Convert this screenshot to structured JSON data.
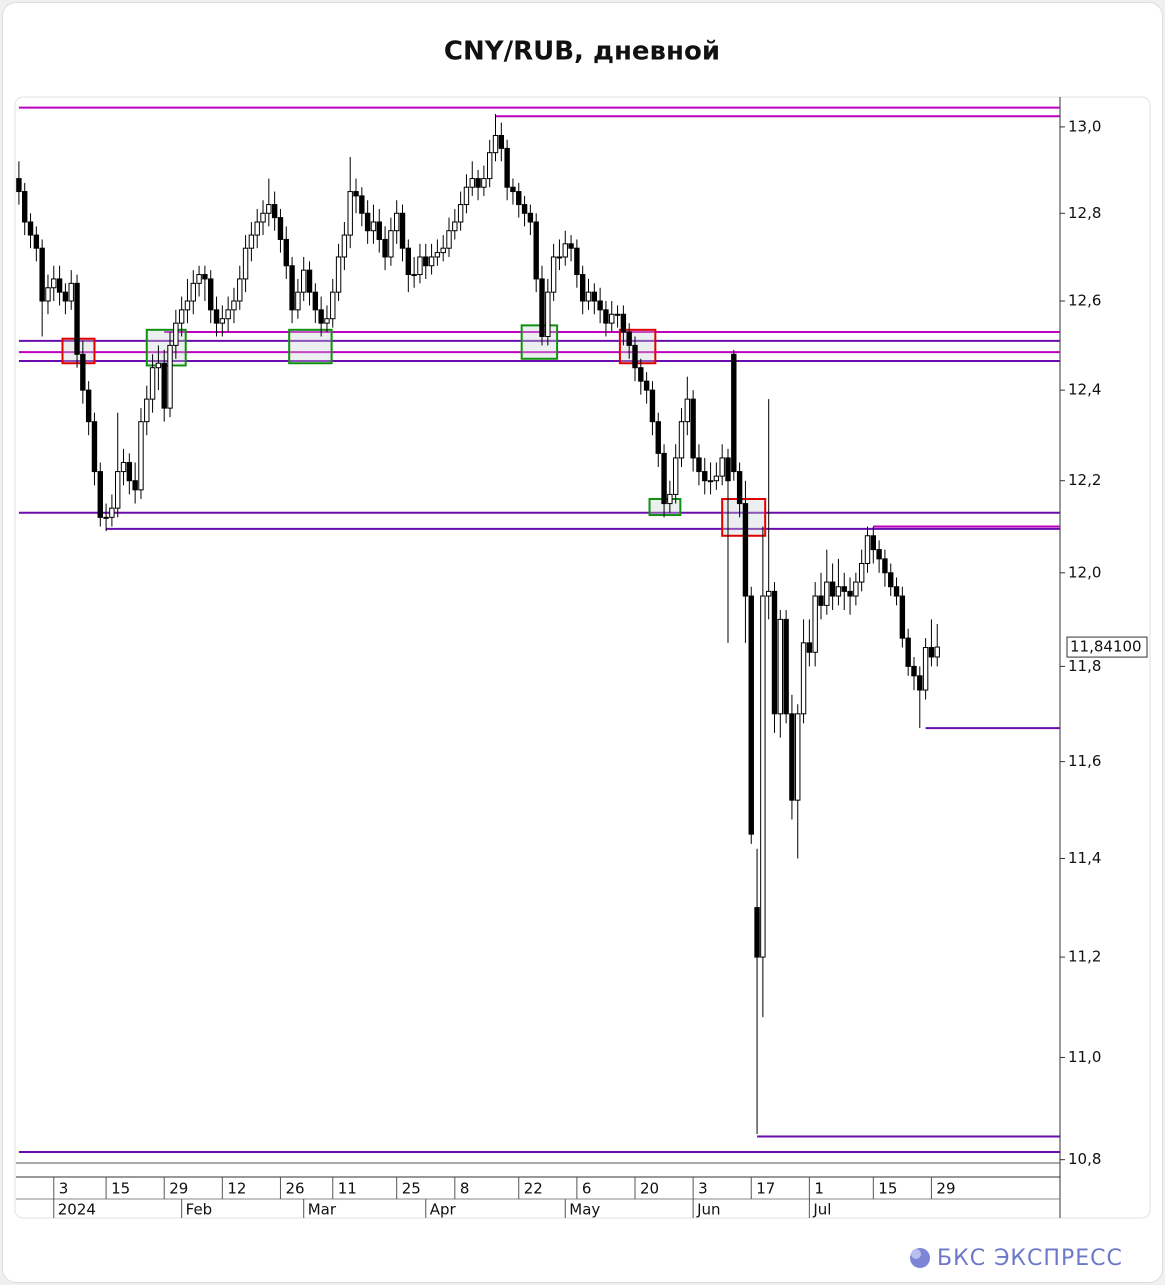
{
  "chart_data": {
    "type": "candlestick",
    "title": "CNY/RUB, дневной",
    "log_scale": true,
    "ylim": [
      10.78,
      13.07
    ],
    "xlim": [
      -0.5,
      170.5
    ],
    "yticks": [
      {
        "value": 10.8,
        "label": "10,8"
      },
      {
        "value": 11.0,
        "label": "11,0"
      },
      {
        "value": 11.2,
        "label": "11,2"
      },
      {
        "value": 11.4,
        "label": "11,4"
      },
      {
        "value": 11.6,
        "label": "11,6"
      },
      {
        "value": 11.8,
        "label": "11,8"
      },
      {
        "value": 12.0,
        "label": "12,0"
      },
      {
        "value": 12.2,
        "label": "12,2"
      },
      {
        "value": 12.4,
        "label": "12,4"
      },
      {
        "value": 12.6,
        "label": "12,6"
      },
      {
        "value": 12.8,
        "label": "12,8"
      },
      {
        "value": 13.0,
        "label": "13,0"
      }
    ],
    "xticks": [
      {
        "value": 6,
        "label": "3"
      },
      {
        "value": 15,
        "label": "15"
      },
      {
        "value": 25,
        "label": "29"
      },
      {
        "value": 35,
        "label": "12"
      },
      {
        "value": 45,
        "label": "26"
      },
      {
        "value": 54,
        "label": "11"
      },
      {
        "value": 65,
        "label": "25"
      },
      {
        "value": 75,
        "label": "8"
      },
      {
        "value": 86,
        "label": "22"
      },
      {
        "value": 96,
        "label": "6"
      },
      {
        "value": 106,
        "label": "20"
      },
      {
        "value": 116,
        "label": "3"
      },
      {
        "value": 126,
        "label": "17"
      },
      {
        "value": 136,
        "label": "1"
      },
      {
        "value": 147,
        "label": "15"
      },
      {
        "value": 157,
        "label": "29"
      }
    ],
    "month_ticks": [
      {
        "value": 6,
        "label": "2024"
      },
      {
        "value": 28,
        "label": "Feb"
      },
      {
        "value": 49,
        "label": "Mar"
      },
      {
        "value": 70,
        "label": "Apr"
      },
      {
        "value": 94,
        "label": "May"
      },
      {
        "value": 116,
        "label": "Jun"
      },
      {
        "value": 136,
        "label": "Jul"
      }
    ],
    "up_color": "#ffffff",
    "down_color": "#000000",
    "candles": [
      [
        12.88,
        12.92,
        12.82,
        12.85
      ],
      [
        12.85,
        12.87,
        12.75,
        12.78
      ],
      [
        12.78,
        12.8,
        12.72,
        12.75
      ],
      [
        12.75,
        12.77,
        12.69,
        12.72
      ],
      [
        12.72,
        12.74,
        12.52,
        12.6
      ],
      [
        12.6,
        12.66,
        12.57,
        12.63
      ],
      [
        12.63,
        12.68,
        12.6,
        12.65
      ],
      [
        12.65,
        12.68,
        12.59,
        12.62
      ],
      [
        12.62,
        12.64,
        12.57,
        12.6
      ],
      [
        12.6,
        12.67,
        12.58,
        12.64
      ],
      [
        12.64,
        12.66,
        12.45,
        12.48
      ],
      [
        12.48,
        12.51,
        12.37,
        12.4
      ],
      [
        12.4,
        12.42,
        12.3,
        12.33
      ],
      [
        12.33,
        12.35,
        12.19,
        12.22
      ],
      [
        12.22,
        12.24,
        12.1,
        12.12
      ],
      [
        12.12,
        12.15,
        12.09,
        12.12
      ],
      [
        12.12,
        12.17,
        12.1,
        12.14
      ],
      [
        12.14,
        12.35,
        12.12,
        12.22
      ],
      [
        12.22,
        12.27,
        12.19,
        12.24
      ],
      [
        12.24,
        12.26,
        12.17,
        12.2
      ],
      [
        12.2,
        12.24,
        12.15,
        12.18
      ],
      [
        12.18,
        12.36,
        12.16,
        12.33
      ],
      [
        12.33,
        12.41,
        12.3,
        12.38
      ],
      [
        12.38,
        12.48,
        12.35,
        12.45
      ],
      [
        12.45,
        12.5,
        12.4,
        12.46
      ],
      [
        12.46,
        12.49,
        12.33,
        12.36
      ],
      [
        12.36,
        12.53,
        12.34,
        12.5
      ],
      [
        12.5,
        12.58,
        12.47,
        12.55
      ],
      [
        12.55,
        12.61,
        12.52,
        12.58
      ],
      [
        12.58,
        12.65,
        12.55,
        12.6
      ],
      [
        12.6,
        12.67,
        12.57,
        12.64
      ],
      [
        12.64,
        12.68,
        12.61,
        12.66
      ],
      [
        12.66,
        12.68,
        12.6,
        12.65
      ],
      [
        12.65,
        12.67,
        12.55,
        12.58
      ],
      [
        12.58,
        12.61,
        12.52,
        12.55
      ],
      [
        12.55,
        12.59,
        12.52,
        12.56
      ],
      [
        12.56,
        12.61,
        12.53,
        12.58
      ],
      [
        12.58,
        12.63,
        12.55,
        12.6
      ],
      [
        12.6,
        12.68,
        12.58,
        12.65
      ],
      [
        12.65,
        12.75,
        12.62,
        12.72
      ],
      [
        12.72,
        12.78,
        12.69,
        12.75
      ],
      [
        12.75,
        12.81,
        12.72,
        12.78
      ],
      [
        12.78,
        12.83,
        12.75,
        12.8
      ],
      [
        12.8,
        12.88,
        12.77,
        12.82
      ],
      [
        12.82,
        12.85,
        12.76,
        12.79
      ],
      [
        12.79,
        12.81,
        12.71,
        12.74
      ],
      [
        12.74,
        12.77,
        12.65,
        12.68
      ],
      [
        12.68,
        12.7,
        12.55,
        12.58
      ],
      [
        12.58,
        12.65,
        12.56,
        12.62
      ],
      [
        12.62,
        12.7,
        12.6,
        12.67
      ],
      [
        12.67,
        12.69,
        12.59,
        12.62
      ],
      [
        12.62,
        12.64,
        12.55,
        12.58
      ],
      [
        12.58,
        12.61,
        12.52,
        12.55
      ],
      [
        12.55,
        12.59,
        12.53,
        12.56
      ],
      [
        12.56,
        12.65,
        12.54,
        12.62
      ],
      [
        12.62,
        12.73,
        12.6,
        12.7
      ],
      [
        12.7,
        12.78,
        12.67,
        12.75
      ],
      [
        12.75,
        12.93,
        12.72,
        12.85
      ],
      [
        12.85,
        12.88,
        12.8,
        12.84
      ],
      [
        12.84,
        12.86,
        12.77,
        12.8
      ],
      [
        12.8,
        12.83,
        12.73,
        12.76
      ],
      [
        12.76,
        12.82,
        12.73,
        12.78
      ],
      [
        12.78,
        12.81,
        12.71,
        12.74
      ],
      [
        12.74,
        12.77,
        12.67,
        12.7
      ],
      [
        12.7,
        12.79,
        12.68,
        12.76
      ],
      [
        12.76,
        12.83,
        12.73,
        12.8
      ],
      [
        12.8,
        12.82,
        12.69,
        12.72
      ],
      [
        12.72,
        12.74,
        12.62,
        12.66
      ],
      [
        12.66,
        12.7,
        12.63,
        12.66
      ],
      [
        12.66,
        12.73,
        12.64,
        12.7
      ],
      [
        12.7,
        12.73,
        12.65,
        12.68
      ],
      [
        12.68,
        12.73,
        12.66,
        12.7
      ],
      [
        12.7,
        12.74,
        12.68,
        12.71
      ],
      [
        12.71,
        12.75,
        12.69,
        12.72
      ],
      [
        12.72,
        12.79,
        12.7,
        12.76
      ],
      [
        12.76,
        12.81,
        12.74,
        12.78
      ],
      [
        12.78,
        12.85,
        12.76,
        12.82
      ],
      [
        12.82,
        12.89,
        12.8,
        12.86
      ],
      [
        12.86,
        12.92,
        12.84,
        12.88
      ],
      [
        12.88,
        12.9,
        12.83,
        12.86
      ],
      [
        12.86,
        12.91,
        12.84,
        12.88
      ],
      [
        12.88,
        12.97,
        12.86,
        12.94
      ],
      [
        12.94,
        13.03,
        12.92,
        12.98
      ],
      [
        12.98,
        13.01,
        12.92,
        12.95
      ],
      [
        12.95,
        12.97,
        12.83,
        12.86
      ],
      [
        12.86,
        12.88,
        12.82,
        12.85
      ],
      [
        12.85,
        12.87,
        12.79,
        12.82
      ],
      [
        12.82,
        12.84,
        12.77,
        12.8
      ],
      [
        12.8,
        12.82,
        12.75,
        12.78
      ],
      [
        12.78,
        12.8,
        12.62,
        12.65
      ],
      [
        12.65,
        12.68,
        12.5,
        12.52
      ],
      [
        12.52,
        12.65,
        12.5,
        12.62
      ],
      [
        12.62,
        12.73,
        12.6,
        12.7
      ],
      [
        12.7,
        12.74,
        12.67,
        12.7
      ],
      [
        12.7,
        12.76,
        12.68,
        12.73
      ],
      [
        12.73,
        12.75,
        12.69,
        12.72
      ],
      [
        12.72,
        12.74,
        12.63,
        12.66
      ],
      [
        12.66,
        12.68,
        12.57,
        12.6
      ],
      [
        12.6,
        12.65,
        12.58,
        12.62
      ],
      [
        12.62,
        12.64,
        12.57,
        12.6
      ],
      [
        12.6,
        12.63,
        12.55,
        12.58
      ],
      [
        12.58,
        12.6,
        12.52,
        12.55
      ],
      [
        12.55,
        12.6,
        12.53,
        12.57
      ],
      [
        12.57,
        12.59,
        12.54,
        12.57
      ],
      [
        12.57,
        12.59,
        12.5,
        12.53
      ],
      [
        12.53,
        12.55,
        12.47,
        12.5
      ],
      [
        12.5,
        12.52,
        12.42,
        12.45
      ],
      [
        12.45,
        12.47,
        12.39,
        12.42
      ],
      [
        12.42,
        12.44,
        12.37,
        12.4
      ],
      [
        12.4,
        12.42,
        12.3,
        12.33
      ],
      [
        12.33,
        12.35,
        12.23,
        12.26
      ],
      [
        12.26,
        12.28,
        12.12,
        12.15
      ],
      [
        12.15,
        12.2,
        12.13,
        12.17
      ],
      [
        12.17,
        12.28,
        12.15,
        12.25
      ],
      [
        12.25,
        12.36,
        12.23,
        12.33
      ],
      [
        12.33,
        12.43,
        12.3,
        12.38
      ],
      [
        12.38,
        12.4,
        12.22,
        12.25
      ],
      [
        12.25,
        12.28,
        12.19,
        12.22
      ],
      [
        12.22,
        12.25,
        12.17,
        12.2
      ],
      [
        12.2,
        12.24,
        12.17,
        12.2
      ],
      [
        12.2,
        12.24,
        12.18,
        12.21
      ],
      [
        12.21,
        12.28,
        12.19,
        12.25
      ],
      [
        12.25,
        12.27,
        11.85,
        12.2
      ],
      [
        12.48,
        12.49,
        12.2,
        12.22
      ],
      [
        12.22,
        12.24,
        12.12,
        12.15
      ],
      [
        12.15,
        12.2,
        11.85,
        11.95
      ],
      [
        11.95,
        11.97,
        11.43,
        11.45
      ],
      [
        11.3,
        11.42,
        10.85,
        11.2
      ],
      [
        11.2,
        12.1,
        11.08,
        11.95
      ],
      [
        11.95,
        12.38,
        11.9,
        11.96
      ],
      [
        11.96,
        11.98,
        11.66,
        11.7
      ],
      [
        11.7,
        11.92,
        11.65,
        11.9
      ],
      [
        11.9,
        11.92,
        11.68,
        11.7
      ],
      [
        11.7,
        11.74,
        11.48,
        11.52
      ],
      [
        11.52,
        11.72,
        11.4,
        11.7
      ],
      [
        11.7,
        11.9,
        11.68,
        11.85
      ],
      [
        11.85,
        11.9,
        11.8,
        11.83
      ],
      [
        11.83,
        11.98,
        11.8,
        11.95
      ],
      [
        11.95,
        12.0,
        11.9,
        11.93
      ],
      [
        11.93,
        12.05,
        11.91,
        11.98
      ],
      [
        11.98,
        12.02,
        11.92,
        11.95
      ],
      [
        11.95,
        12.03,
        11.93,
        11.97
      ],
      [
        11.97,
        12.0,
        11.92,
        11.96
      ],
      [
        11.96,
        11.99,
        11.91,
        11.95
      ],
      [
        11.95,
        12.0,
        11.93,
        11.98
      ],
      [
        11.98,
        12.05,
        11.96,
        12.02
      ],
      [
        12.02,
        12.1,
        12.0,
        12.08
      ],
      [
        12.08,
        12.1,
        12.02,
        12.05
      ],
      [
        12.05,
        12.07,
        12.0,
        12.03
      ],
      [
        12.03,
        12.05,
        11.97,
        12.0
      ],
      [
        12.0,
        12.02,
        11.95,
        11.97
      ],
      [
        11.97,
        11.99,
        11.93,
        11.95
      ],
      [
        11.95,
        11.97,
        11.84,
        11.86
      ],
      [
        11.86,
        11.88,
        11.78,
        11.8
      ],
      [
        11.8,
        11.82,
        11.75,
        11.78
      ],
      [
        11.78,
        11.8,
        11.67,
        11.75
      ],
      [
        11.75,
        11.86,
        11.73,
        11.84
      ],
      [
        11.84,
        11.9,
        11.8,
        11.82
      ],
      [
        11.82,
        11.89,
        11.8,
        11.841
      ]
    ],
    "levels": [
      {
        "value": 13.045,
        "from": 0,
        "color": "#c000c0"
      },
      {
        "value": 13.025,
        "from": 82,
        "color": "#c000c0"
      },
      {
        "value": 12.53,
        "from": 25,
        "color": "#c000c0"
      },
      {
        "value": 12.51,
        "from": 0,
        "color": "#6a0dad"
      },
      {
        "value": 12.485,
        "from": 0,
        "color": "#c000c0"
      },
      {
        "value": 12.465,
        "from": 0,
        "color": "#6a0dad"
      },
      {
        "value": 12.13,
        "from": 0,
        "color": "#6a0dad"
      },
      {
        "value": 12.095,
        "from": 15,
        "color": "#6a0dad"
      },
      {
        "value": 12.1,
        "from": 147,
        "color": "#c000c0"
      },
      {
        "value": 11.67,
        "from": 156,
        "color": "#6a0dad"
      },
      {
        "value": 10.845,
        "from": 127,
        "color": "#6a0dad"
      },
      {
        "value": 10.815,
        "from": 0,
        "color": "#6a0dad"
      }
    ],
    "boxes": [
      {
        "x0": 7.5,
        "x1": 13,
        "y0": 12.46,
        "y1": 12.515,
        "color": "#e00000"
      },
      {
        "x0": 22,
        "x1": 28.7,
        "y0": 12.455,
        "y1": 12.535,
        "color": "#109010"
      },
      {
        "x0": 46.5,
        "x1": 53.8,
        "y0": 12.46,
        "y1": 12.535,
        "color": "#109010"
      },
      {
        "x0": 86.5,
        "x1": 92.6,
        "y0": 12.47,
        "y1": 12.545,
        "color": "#109010"
      },
      {
        "x0": 103.4,
        "x1": 109.5,
        "y0": 12.46,
        "y1": 12.535,
        "color": "#e00000"
      },
      {
        "x0": 108.5,
        "x1": 113.8,
        "y0": 12.125,
        "y1": 12.16,
        "color": "#109010"
      },
      {
        "x0": 121,
        "x1": 128.4,
        "y0": 12.08,
        "y1": 12.16,
        "color": "#e00000"
      }
    ],
    "last_price": {
      "value": 11.841,
      "label": "11,84100"
    }
  },
  "brand": "БКС ЭКСПРЕСС"
}
